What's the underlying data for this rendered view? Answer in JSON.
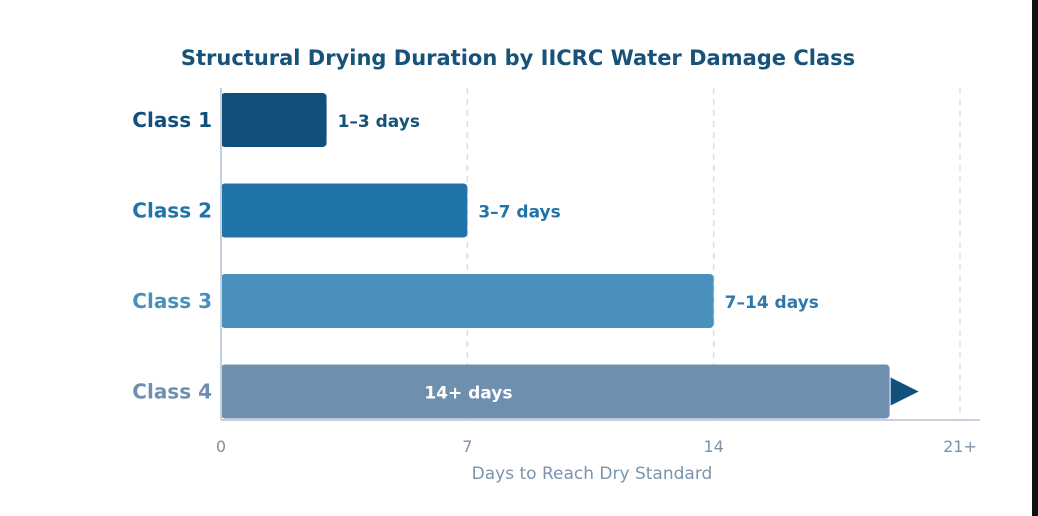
{
  "chart_data": {
    "type": "bar",
    "orientation": "horizontal",
    "title": "Structural Drying Duration by IICRC Water Damage Class",
    "xlabel": "Days to Reach Dry Standard",
    "ylabel": "",
    "xlim": [
      0,
      21
    ],
    "x_ticks": [
      {
        "value": 0,
        "label": "0"
      },
      {
        "value": 7,
        "label": "7"
      },
      {
        "value": 14,
        "label": "14"
      },
      {
        "value": 21,
        "label": "21+"
      }
    ],
    "grid": "vertical dashed",
    "categories": [
      "Class 1",
      "Class 2",
      "Class 3",
      "Class 4"
    ],
    "bars": [
      {
        "category": "Class 1",
        "min": 1,
        "max": 3,
        "value": 3,
        "label": "1–3 days",
        "color": "#10507a",
        "label_color": "#16527a",
        "open_ended": false
      },
      {
        "category": "Class 2",
        "min": 3,
        "max": 7,
        "value": 7,
        "label": "3–7 days",
        "color": "#2074aa",
        "label_color": "#2074aa",
        "open_ended": false
      },
      {
        "category": "Class 3",
        "min": 7,
        "max": 14,
        "value": 14,
        "label": "7–14 days",
        "color": "#4a90bc",
        "label_color": "#2f78aa",
        "open_ended": false
      },
      {
        "category": "Class 4",
        "min": 14,
        "max": null,
        "value": 19,
        "label": "14+ days",
        "color": "#6f8fae",
        "label_color": "#ffffff",
        "open_ended": true
      }
    ],
    "arrow_color": "#10507a"
  }
}
